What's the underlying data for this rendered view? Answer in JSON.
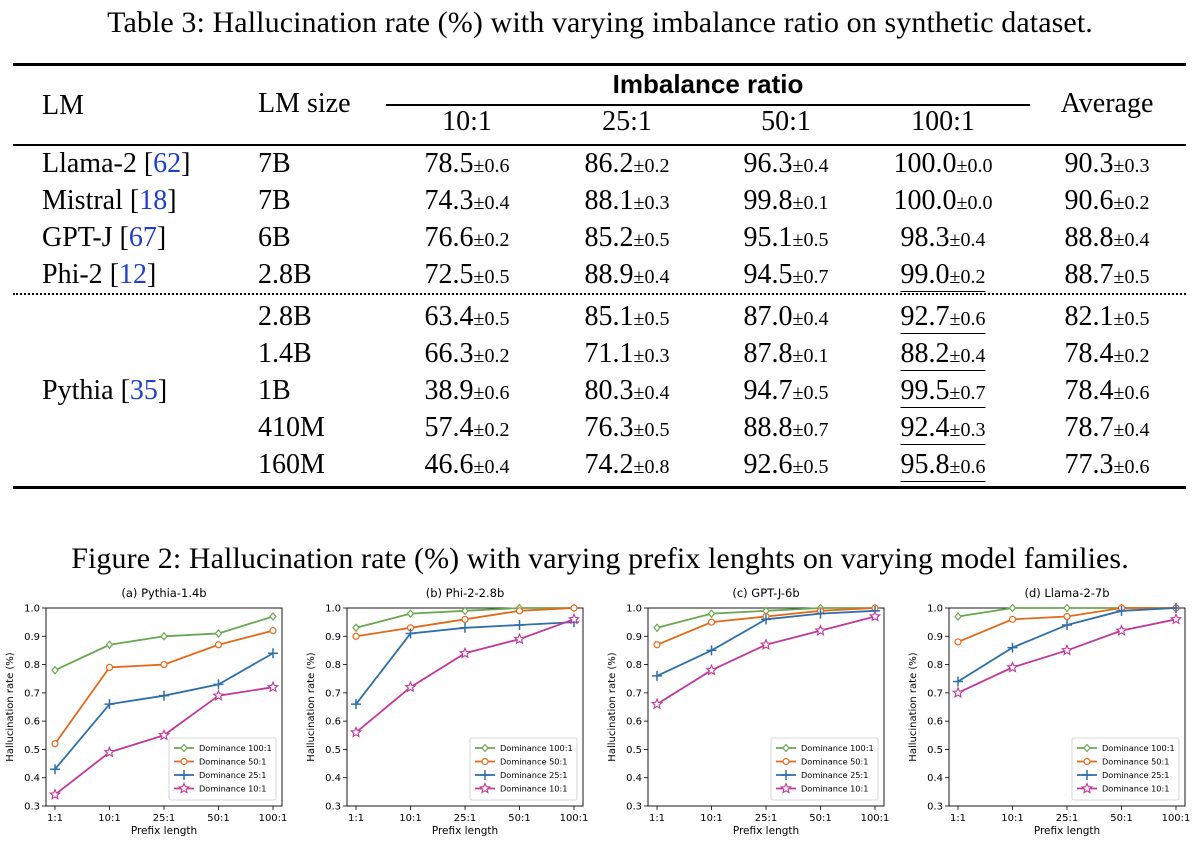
{
  "table": {
    "caption": "Table 3: Hallucination rate (%) with varying imbalance ratio on synthetic dataset.",
    "header": {
      "lm": "LM",
      "lm_size": "LM size",
      "imbalance_ratio": "Imbalance ratio",
      "ratios": [
        "10:1",
        "25:1",
        "50:1",
        "100:1"
      ],
      "average": "Average"
    },
    "rows": [
      {
        "lm": "Llama-2",
        "cite": "62",
        "size": "7B",
        "values": [
          [
            "78.5",
            "±0.6"
          ],
          [
            "86.2",
            "±0.2"
          ],
          [
            "96.3",
            "±0.4"
          ],
          [
            "100.0",
            "±0.0"
          ]
        ],
        "avg": [
          "90.3",
          "±0.3"
        ],
        "underline": false
      },
      {
        "lm": "Mistral",
        "cite": "18",
        "size": "7B",
        "values": [
          [
            "74.3",
            "±0.4"
          ],
          [
            "88.1",
            "±0.3"
          ],
          [
            "99.8",
            "±0.1"
          ],
          [
            "100.0",
            "±0.0"
          ]
        ],
        "avg": [
          "90.6",
          "±0.2"
        ],
        "underline": false
      },
      {
        "lm": "GPT-J",
        "cite": "67",
        "size": "6B",
        "values": [
          [
            "76.6",
            "±0.2"
          ],
          [
            "85.2",
            "±0.5"
          ],
          [
            "95.1",
            "±0.5"
          ],
          [
            "98.3",
            "±0.4"
          ]
        ],
        "avg": [
          "88.8",
          "±0.4"
        ],
        "underline": false
      },
      {
        "lm": "Phi-2",
        "cite": "12",
        "size": "2.8B",
        "values": [
          [
            "72.5",
            "±0.5"
          ],
          [
            "88.9",
            "±0.4"
          ],
          [
            "94.5",
            "±0.7"
          ],
          [
            "99.0",
            "±0.2"
          ]
        ],
        "avg": [
          "88.7",
          "±0.5"
        ],
        "underline": true
      },
      {
        "lm": "",
        "cite": "",
        "size": "2.8B",
        "values": [
          [
            "63.4",
            "±0.5"
          ],
          [
            "85.1",
            "±0.5"
          ],
          [
            "87.0",
            "±0.4"
          ],
          [
            "92.7",
            "±0.6"
          ]
        ],
        "avg": [
          "82.1",
          "±0.5"
        ],
        "underline": true
      },
      {
        "lm": "",
        "cite": "",
        "size": "1.4B",
        "values": [
          [
            "66.3",
            "±0.2"
          ],
          [
            "71.1",
            "±0.3"
          ],
          [
            "87.8",
            "±0.1"
          ],
          [
            "88.2",
            "±0.4"
          ]
        ],
        "avg": [
          "78.4",
          "±0.2"
        ],
        "underline": true
      },
      {
        "lm": "Pythia",
        "cite": "35",
        "size": "1B",
        "values": [
          [
            "38.9",
            "±0.6"
          ],
          [
            "80.3",
            "±0.4"
          ],
          [
            "94.7",
            "±0.5"
          ],
          [
            "99.5",
            "±0.7"
          ]
        ],
        "avg": [
          "78.4",
          "±0.6"
        ],
        "underline": true
      },
      {
        "lm": "",
        "cite": "",
        "size": "410M",
        "values": [
          [
            "57.4",
            "±0.2"
          ],
          [
            "76.3",
            "±0.5"
          ],
          [
            "88.8",
            "±0.7"
          ],
          [
            "92.4",
            "±0.3"
          ]
        ],
        "avg": [
          "78.7",
          "±0.4"
        ],
        "underline": true
      },
      {
        "lm": "",
        "cite": "",
        "size": "160M",
        "values": [
          [
            "46.6",
            "±0.4"
          ],
          [
            "74.2",
            "±0.8"
          ],
          [
            "92.6",
            "±0.5"
          ],
          [
            "95.8",
            "±0.6"
          ]
        ],
        "avg": [
          "77.3",
          "±0.6"
        ],
        "underline": true
      }
    ]
  },
  "figure": {
    "caption": "Figure 2: Hallucination rate (%) with varying prefix lenghts on varying model families."
  },
  "colors": {
    "dom100": "#6aa84f",
    "dom50": "#e06a1b",
    "dom25": "#2f6fa8",
    "dom10": "#c0399a",
    "cite": "#1f3fc9"
  },
  "chart_data": [
    {
      "type": "line",
      "title": "(a) Pythia-1.4b",
      "xlabel": "Prefix length",
      "ylabel": "Hallucination rate (%)",
      "categories": [
        "1:1",
        "10:1",
        "25:1",
        "50:1",
        "100:1"
      ],
      "ylim": [
        0.3,
        1.0
      ],
      "yticks": [
        "0.3",
        "0.4",
        "0.5",
        "0.6",
        "0.7",
        "0.8",
        "0.9",
        "1.0"
      ],
      "legend": "lower-right",
      "series": [
        {
          "name": "Dominance 100:1",
          "values": [
            0.78,
            0.87,
            0.9,
            0.91,
            0.97
          ]
        },
        {
          "name": "Dominance 50:1",
          "values": [
            0.52,
            0.79,
            0.8,
            0.87,
            0.92
          ]
        },
        {
          "name": "Dominance 25:1",
          "values": [
            0.43,
            0.66,
            0.69,
            0.73,
            0.84
          ]
        },
        {
          "name": "Dominance 10:1",
          "values": [
            0.34,
            0.49,
            0.55,
            0.69,
            0.72
          ]
        }
      ]
    },
    {
      "type": "line",
      "title": "(b) Phi-2-2.8b",
      "xlabel": "Prefix length",
      "ylabel": "Hallucination rate (%)",
      "categories": [
        "1:1",
        "10:1",
        "25:1",
        "50:1",
        "100:1"
      ],
      "ylim": [
        0.3,
        1.0
      ],
      "yticks": [
        "0.3",
        "0.4",
        "0.5",
        "0.6",
        "0.7",
        "0.8",
        "0.9",
        "1.0"
      ],
      "legend": "lower-right",
      "series": [
        {
          "name": "Dominance 100:1",
          "values": [
            0.93,
            0.98,
            0.99,
            1.0,
            1.0
          ]
        },
        {
          "name": "Dominance 50:1",
          "values": [
            0.9,
            0.93,
            0.96,
            0.99,
            1.0
          ]
        },
        {
          "name": "Dominance 25:1",
          "values": [
            0.66,
            0.91,
            0.93,
            0.94,
            0.95
          ]
        },
        {
          "name": "Dominance 10:1",
          "values": [
            0.56,
            0.72,
            0.84,
            0.89,
            0.96
          ]
        }
      ]
    },
    {
      "type": "line",
      "title": "(c) GPT-J-6b",
      "xlabel": "Prefix length",
      "ylabel": "Hallucination rate (%)",
      "categories": [
        "1:1",
        "10:1",
        "25:1",
        "50:1",
        "100:1"
      ],
      "ylim": [
        0.3,
        1.0
      ],
      "yticks": [
        "0.3",
        "0.4",
        "0.5",
        "0.6",
        "0.7",
        "0.8",
        "0.9",
        "1.0"
      ],
      "legend": "lower-right",
      "series": [
        {
          "name": "Dominance 100:1",
          "values": [
            0.93,
            0.98,
            0.99,
            1.0,
            1.0
          ]
        },
        {
          "name": "Dominance 50:1",
          "values": [
            0.87,
            0.95,
            0.97,
            0.99,
            1.0
          ]
        },
        {
          "name": "Dominance 25:1",
          "values": [
            0.76,
            0.85,
            0.96,
            0.98,
            0.99
          ]
        },
        {
          "name": "Dominance 10:1",
          "values": [
            0.66,
            0.78,
            0.87,
            0.92,
            0.97
          ]
        }
      ]
    },
    {
      "type": "line",
      "title": "(d) Llama-2-7b",
      "xlabel": "Prefix length",
      "ylabel": "Hallucination rate (%)",
      "categories": [
        "1:1",
        "10:1",
        "25:1",
        "50:1",
        "100:1"
      ],
      "ylim": [
        0.3,
        1.0
      ],
      "yticks": [
        "0.3",
        "0.4",
        "0.5",
        "0.6",
        "0.7",
        "0.8",
        "0.9",
        "1.0"
      ],
      "legend": "lower-right",
      "series": [
        {
          "name": "Dominance 100:1",
          "values": [
            0.97,
            1.0,
            1.0,
            1.0,
            1.0
          ]
        },
        {
          "name": "Dominance 50:1",
          "values": [
            0.88,
            0.96,
            0.97,
            1.0,
            1.0
          ]
        },
        {
          "name": "Dominance 25:1",
          "values": [
            0.74,
            0.86,
            0.94,
            0.99,
            1.0
          ]
        },
        {
          "name": "Dominance 10:1",
          "values": [
            0.7,
            0.79,
            0.85,
            0.92,
            0.96
          ]
        }
      ]
    }
  ]
}
